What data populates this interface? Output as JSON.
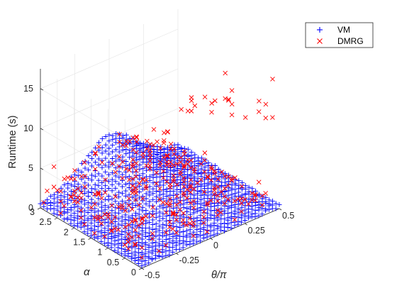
{
  "chart_data": {
    "type": "scatter",
    "projection": "3d",
    "xlabel": "θ/π",
    "ylabel": "α",
    "zlabel": "Runtime (s)",
    "xlim": [
      -0.5,
      0.5
    ],
    "ylim": [
      0,
      3
    ],
    "zlim": [
      0,
      17.5
    ],
    "x_ticks": [
      "-0.5",
      "-0.25",
      "0",
      "0.25",
      "0.5"
    ],
    "y_ticks": [
      "0",
      "0.5",
      "1",
      "1.5",
      "2",
      "2.5",
      "3"
    ],
    "z_ticks": [
      "0",
      "5",
      "10",
      "15"
    ],
    "grid": true,
    "legend_position": "top-right, outside plot area",
    "series": [
      {
        "name": "VM",
        "marker": "+",
        "color": "#0000ff",
        "grid_x": {
          "start": -0.5,
          "stop": 0.5,
          "count": 41
        },
        "grid_y": {
          "start": 0,
          "stop": 3,
          "count": 31
        },
        "runtime_model": "approx. 0.3–0.6 s near α=0 and the θ edges, rising to ~5.5 s at θ/π≈0, α≈3"
      },
      {
        "name": "DMRG",
        "marker": "×",
        "color": "#ff0000",
        "sample_density": "about 1 of every 4 grid points",
        "runtime_model": "about 1–4 s over most of the grid; about 6–13 s along the ridge near θ/π≈0.45–0.5",
        "outliers": [
          {
            "x": 0.5,
            "y": 0.2,
            "z": 15.8
          },
          {
            "x": 0.5,
            "y": 1.6,
            "z": 13.0
          },
          {
            "x": 0.45,
            "y": 1.2,
            "z": 12.2
          },
          {
            "x": -0.5,
            "y": 1.7,
            "z": 9.0
          },
          {
            "x": 0.5,
            "y": 2.0,
            "z": 8.2
          },
          {
            "x": -0.5,
            "y": 2.6,
            "z": 6.2
          },
          {
            "x": 0.5,
            "y": 2.6,
            "z": 7.0
          }
        ]
      }
    ]
  }
}
